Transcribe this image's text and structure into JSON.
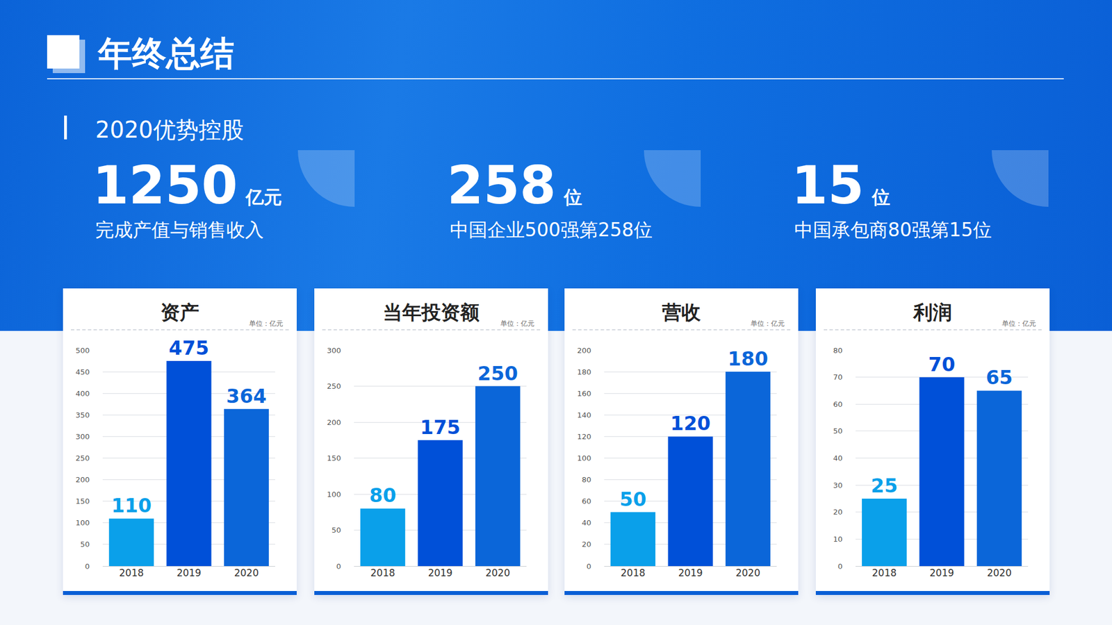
{
  "header": {
    "title": "年终总结",
    "subtitle": "2020优势控股"
  },
  "stats": [
    {
      "value": 1250,
      "unit": "亿元",
      "label": "完成产值与销售收入"
    },
    {
      "value": 258,
      "unit": "位",
      "label": "中国企业500强第258位"
    },
    {
      "value": 15,
      "unit": "位",
      "label": "中国承包商80强第15位"
    }
  ],
  "chart_data": [
    {
      "type": "bar",
      "title": "资产",
      "subtitle": "单位：亿元",
      "categories": [
        "2018",
        "2019",
        "2020"
      ],
      "values": [
        110,
        475,
        364
      ],
      "colors": [
        "#0aa0ea",
        "#0050d8",
        "#0b66d9"
      ],
      "ylim": [
        0,
        500
      ],
      "yticks": [
        0,
        50,
        100,
        150,
        200,
        250,
        300,
        350,
        400,
        450,
        500
      ],
      "grid": true,
      "data_labels": true
    },
    {
      "type": "bar",
      "title": "当年投资额",
      "subtitle": "单位：亿元",
      "categories": [
        "2018",
        "2019",
        "2020"
      ],
      "values": [
        80,
        175,
        250
      ],
      "colors": [
        "#0aa0ea",
        "#0050d8",
        "#0b66d9"
      ],
      "ylim": [
        0,
        300
      ],
      "yticks": [
        0,
        50,
        100,
        150,
        200,
        250,
        300
      ],
      "grid": true,
      "data_labels": true
    },
    {
      "type": "bar",
      "title": "营收",
      "subtitle": "单位：亿元",
      "categories": [
        "2018",
        "2019",
        "2020"
      ],
      "values": [
        50,
        120,
        180
      ],
      "colors": [
        "#0aa0ea",
        "#0050d8",
        "#0b66d9"
      ],
      "ylim": [
        0,
        200
      ],
      "yticks": [
        0,
        20,
        40,
        60,
        80,
        100,
        120,
        140,
        160,
        180,
        200
      ],
      "grid": true,
      "data_labels": true
    },
    {
      "type": "bar",
      "title": "利润",
      "subtitle": "单位：亿元",
      "categories": [
        "2018",
        "2019",
        "2020"
      ],
      "values": [
        25,
        70,
        65
      ],
      "colors": [
        "#0aa0ea",
        "#0050d8",
        "#0b66d9"
      ],
      "ylim": [
        0,
        80
      ],
      "yticks": [
        0,
        10,
        20,
        30,
        40,
        50,
        60,
        70,
        80
      ],
      "grid": true,
      "data_labels": true
    }
  ]
}
